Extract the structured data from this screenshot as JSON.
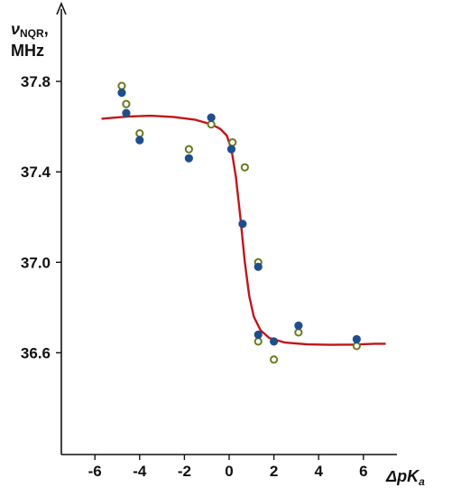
{
  "chart_data": {
    "type": "scatter",
    "title": "",
    "x_axis": {
      "label_delta": "Δ",
      "label_main": "pK",
      "label_sub": "a",
      "range": [
        -7.5,
        7.5
      ],
      "ticks": [
        -6,
        -4,
        -2,
        0,
        2,
        4,
        6
      ],
      "tick_labels": [
        "-6",
        "-4",
        "-2",
        "0",
        "2",
        "4",
        "6"
      ]
    },
    "y_axis": {
      "label_symbol": "ν",
      "label_sub": "NQR",
      "label_comma": ",",
      "label_unit": "MHz",
      "range": [
        36.15,
        38.12
      ],
      "ticks": [
        36.6,
        37.0,
        37.4,
        37.8
      ],
      "tick_labels": [
        "36.6",
        "37.0",
        "37.4",
        "37.8"
      ]
    },
    "grid": false,
    "legend": "none",
    "colors": {
      "axis": "#111111",
      "filled_points": "#1f4e8c",
      "open_points": "#6b7a1f",
      "fit_curve": "#c0161b"
    },
    "series": [
      {
        "marker": "filled-circle",
        "points": [
          [
            -4.8,
            37.75
          ],
          [
            -4.6,
            37.66
          ],
          [
            -4.0,
            37.54
          ],
          [
            -1.8,
            37.46
          ],
          [
            -0.8,
            37.64
          ],
          [
            0.1,
            37.5
          ],
          [
            0.6,
            37.17
          ],
          [
            1.3,
            36.98
          ],
          [
            1.3,
            36.68
          ],
          [
            2.0,
            36.65
          ],
          [
            3.1,
            36.72
          ],
          [
            5.7,
            36.66
          ]
        ]
      },
      {
        "marker": "open-circle",
        "points": [
          [
            -4.8,
            37.78
          ],
          [
            -4.6,
            37.7
          ],
          [
            -4.0,
            37.57
          ],
          [
            -1.8,
            37.5
          ],
          [
            -0.8,
            37.61
          ],
          [
            0.15,
            37.53
          ],
          [
            0.7,
            37.42
          ],
          [
            1.3,
            37.0
          ],
          [
            1.3,
            36.65
          ],
          [
            2.0,
            36.57
          ],
          [
            3.1,
            36.69
          ],
          [
            5.7,
            36.63
          ]
        ]
      },
      {
        "marker": "line",
        "points": [
          [
            -5.7,
            37.635
          ],
          [
            -4.5,
            37.645
          ],
          [
            -3.5,
            37.648
          ],
          [
            -2.5,
            37.643
          ],
          [
            -1.5,
            37.63
          ],
          [
            -0.8,
            37.61
          ],
          [
            -0.4,
            37.59
          ],
          [
            -0.1,
            37.56
          ],
          [
            0.1,
            37.5
          ],
          [
            0.3,
            37.38
          ],
          [
            0.5,
            37.2
          ],
          [
            0.7,
            37.0
          ],
          [
            0.9,
            36.85
          ],
          [
            1.1,
            36.76
          ],
          [
            1.4,
            36.7
          ],
          [
            1.8,
            36.665
          ],
          [
            2.5,
            36.645
          ],
          [
            3.5,
            36.637
          ],
          [
            4.5,
            36.635
          ],
          [
            5.5,
            36.636
          ],
          [
            6.5,
            36.64
          ],
          [
            7.0,
            36.64
          ]
        ]
      }
    ]
  }
}
